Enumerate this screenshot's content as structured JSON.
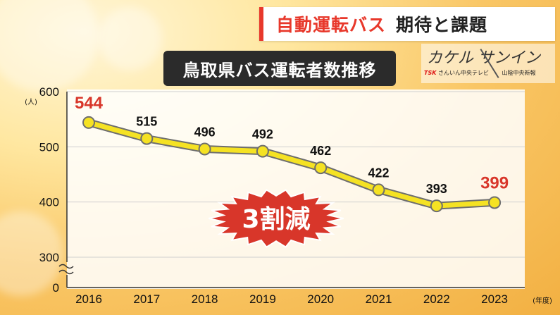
{
  "header": {
    "title_red": "自動運転バス",
    "title_black": "期待と課題"
  },
  "logo": {
    "main": "カケル サンイン",
    "tsk": "TSK",
    "sub1": "さんいん中央テレビ",
    "sub2": "山陰中央新報"
  },
  "chart_data": {
    "type": "line",
    "title": "鳥取県バス運転者数推移",
    "ylabel_unit": "(人)",
    "xlabel_unit": "(年度)",
    "categories": [
      "2016",
      "2017",
      "2018",
      "2019",
      "2020",
      "2021",
      "2022",
      "2023"
    ],
    "series": [
      {
        "values": [
          544,
          515,
          496,
          492,
          462,
          422,
          393,
          399
        ]
      }
    ],
    "ylim": [
      300,
      600
    ],
    "yticks": [
      "600",
      "500",
      "400",
      "300",
      "0"
    ],
    "axis_break": true,
    "highlight_points": [
      "2016",
      "2023"
    ],
    "annotation": "3割減",
    "grid": true,
    "colors": {
      "line": "#f5e223",
      "line_stroke": "#6e6e6e",
      "highlight_label": "#d8362a",
      "burst_fill": "#d8362a"
    }
  }
}
